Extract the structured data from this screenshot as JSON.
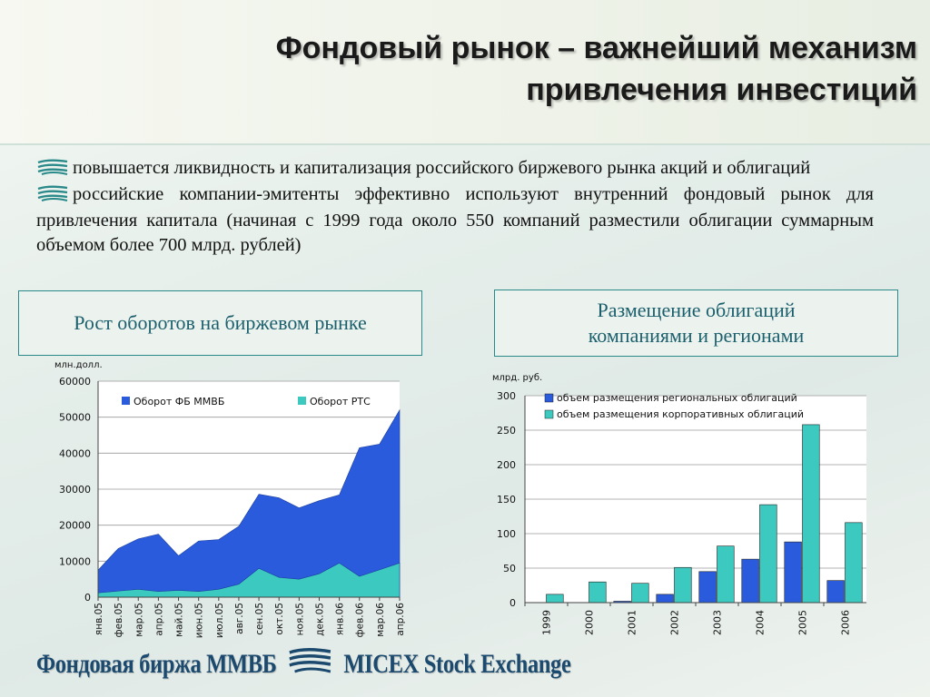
{
  "slide": {
    "title_line1": "Фондовый рынок – важнейший механизм",
    "title_line2": "привлечения инвестиций",
    "bullet1": "повышается ликвидность и капитализация российского биржевого рынка акций и облигаций",
    "bullet2": "российские компании-эмитенты эффективно используют внутренний фондовый рынок для привлечения капитала (начиная с 1999 года около 550 компаний разместили облигации суммарным объемом более 700 млрд. рублей)",
    "box_left": "Рост оборотов на биржевом рынке",
    "box_right": "Размещение облигаций компаниями и регионами",
    "footer_left": "Фондовая биржа ММВБ",
    "footer_right": "MICEX Stock Exchange",
    "bullet_icon": "micex-logo-icon",
    "accent_color": "#2a8a8a",
    "text_color": "#1b5f6c"
  },
  "chart_data": [
    {
      "type": "area",
      "ylabel": "млн.долл.",
      "ylim": [
        0,
        60000
      ],
      "yticks": [
        "0",
        "10000",
        "20000",
        "30000",
        "40000",
        "50000",
        "60000"
      ],
      "categories": [
        "янв.05",
        "фев.05",
        "мар.05",
        "апр.05",
        "май.05",
        "июн.05",
        "июл.05",
        "авг.05",
        "сен.05",
        "окт.05",
        "ноя.05",
        "дек.05",
        "янв.06",
        "фев.06",
        "мар.06",
        "апр.06"
      ],
      "legend_position": "top",
      "grid": true,
      "series": [
        {
          "name": "Оборот ФБ ММВБ",
          "color": "#2a5bdc",
          "values": [
            7500,
            13500,
            16200,
            17500,
            11500,
            15600,
            16000,
            19700,
            28600,
            27600,
            24800,
            26800,
            28400,
            41500,
            42500,
            52000
          ]
        },
        {
          "name": "Оборот РТС",
          "color": "#3cc9c0",
          "values": [
            1200,
            1700,
            2200,
            1600,
            1900,
            1600,
            2200,
            3600,
            8000,
            5500,
            5000,
            6500,
            9500,
            5800,
            7600,
            9500
          ]
        }
      ]
    },
    {
      "type": "bar",
      "ylabel": "млрд. руб.",
      "ylim": [
        0,
        300
      ],
      "yticks": [
        "0",
        "50",
        "100",
        "150",
        "200",
        "250",
        "300"
      ],
      "categories": [
        "1999",
        "2000",
        "2001",
        "2002",
        "2003",
        "2004",
        "2005",
        "2006"
      ],
      "legend_position": "top",
      "grid": true,
      "series": [
        {
          "name": "объем размещения региональных облигаций",
          "color": "#2a5bdc",
          "values": [
            0,
            0,
            2,
            12,
            45,
            63,
            88,
            32
          ]
        },
        {
          "name": "объем размещения корпоративных облигаций",
          "color": "#3cc9c0",
          "values": [
            12,
            30,
            28,
            51,
            82,
            142,
            258,
            116
          ]
        }
      ]
    }
  ]
}
